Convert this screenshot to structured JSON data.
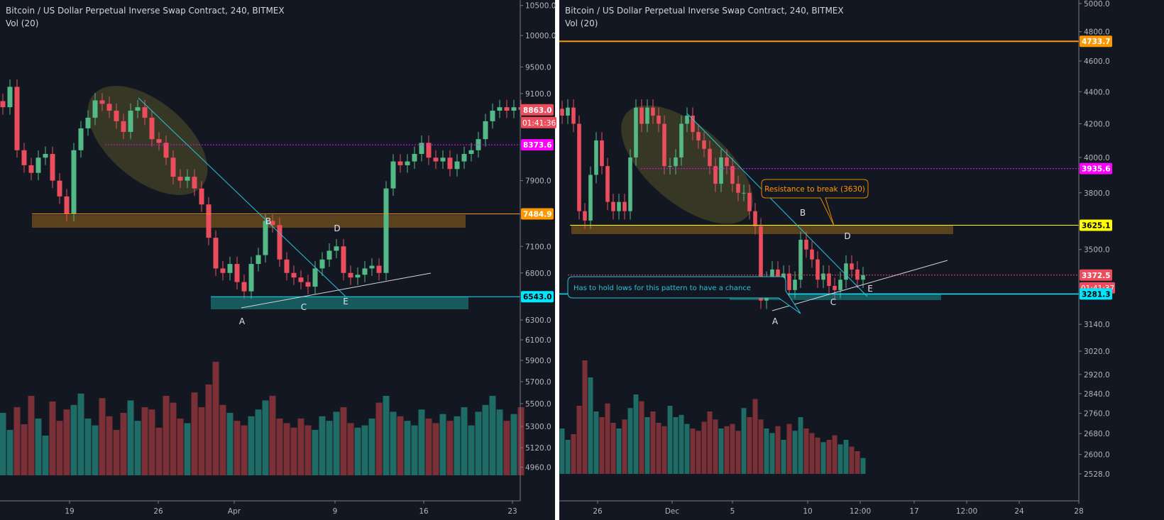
{
  "colors": {
    "background": "#131722",
    "up": "#53b987",
    "down": "#eb4d5c",
    "vol_up": "#1f6b66",
    "vol_down": "#7b2f37",
    "axis_text": "#b2b5be",
    "cyan": "#00e5ff",
    "magenta": "#ff00ff",
    "orange": "#ff9800",
    "yellow": "#ffff00"
  },
  "chart_data": [
    {
      "type": "candlestick",
      "title": "Bitcoin / US Dollar Perpetual Inverse Swap Contract, 240, BITMEX",
      "indicator": "Vol (20)",
      "scale": "log",
      "ylim": [
        4850,
        10600
      ],
      "y_ticks": [
        "10500.0",
        "10000.0",
        "9500.0",
        "9100.0",
        "7900.0",
        "7100.0",
        "6800.0",
        "6300.0",
        "6100.0",
        "5900.0",
        "5700.0",
        "5500.0",
        "5300.0",
        "5120.0",
        "4960.0"
      ],
      "x_ticks": [
        "19",
        "26",
        "Apr",
        "9",
        "16",
        "23"
      ],
      "closes": [
        8900,
        9200,
        8300,
        8100,
        8000,
        8200,
        8250,
        7900,
        7700,
        7480,
        8300,
        8600,
        8750,
        9000,
        8950,
        8850,
        8700,
        8550,
        8850,
        8900,
        8750,
        8450,
        8400,
        8200,
        7950,
        7900,
        7950,
        7800,
        7600,
        7200,
        6850,
        6800,
        6900,
        6700,
        6600,
        6900,
        7000,
        7400,
        7350,
        6950,
        6800,
        6750,
        6700,
        6650,
        6850,
        6950,
        7050,
        7100,
        6800,
        6750,
        6780,
        6850,
        6880,
        6800,
        7800,
        8150,
        8100,
        8150,
        8250,
        8400,
        8200,
        8150,
        8200,
        8050,
        8150,
        8250,
        8300,
        8450,
        8700,
        8850,
        8900,
        8850,
        8900,
        8863
      ],
      "volumes": [
        55,
        40,
        60,
        45,
        70,
        50,
        35,
        65,
        48,
        58,
        62,
        72,
        50,
        44,
        68,
        52,
        40,
        55,
        66,
        48,
        60,
        58,
        42,
        70,
        64,
        50,
        46,
        73,
        60,
        80,
        100,
        62,
        55,
        48,
        44,
        52,
        58,
        66,
        70,
        50,
        46,
        42,
        50,
        44,
        40,
        52,
        48,
        56,
        60,
        46,
        42,
        44,
        50,
        64,
        70,
        56,
        52,
        48,
        44,
        58,
        50,
        46,
        54,
        48,
        52,
        60,
        44,
        56,
        62,
        70,
        58,
        48,
        54,
        60
      ],
      "price_lines": [
        {
          "label": "8863.0",
          "role": "last",
          "sub": "01:41:36"
        },
        {
          "label": "8373.6",
          "role": "magenta"
        },
        {
          "label": "7484.9",
          "role": "orange"
        },
        {
          "label": "6543.0",
          "role": "cyan"
        }
      ],
      "pattern_labels": [
        "A",
        "B",
        "C",
        "D",
        "E"
      ]
    },
    {
      "type": "candlestick",
      "title": "Bitcoin / US Dollar Perpetual Inverse Swap Contract, 240, BITMEX",
      "indicator": "Vol (20)",
      "scale": "log",
      "ylim": [
        2500,
        5020
      ],
      "y_ticks": [
        "5000.0",
        "4800.0",
        "4600.0",
        "4400.0",
        "4200.0",
        "4000.0",
        "3800.0",
        "3500.0",
        "3140.0",
        "3020.0",
        "2920.0",
        "2840.0",
        "2760.0",
        "2680.0",
        "2600.0",
        "2528.0"
      ],
      "x_ticks": [
        "26",
        "Dec",
        "5",
        "10",
        "12:00",
        "17",
        "12:00",
        "24",
        "28"
      ],
      "closes": [
        4250,
        4300,
        4200,
        3700,
        3650,
        3900,
        4100,
        3950,
        3750,
        3700,
        3750,
        3700,
        4000,
        4300,
        4200,
        4300,
        4250,
        4200,
        3950,
        3950,
        4000,
        4200,
        4250,
        4150,
        4100,
        4050,
        3950,
        3850,
        4000,
        3950,
        3850,
        3800,
        3800,
        3700,
        3620,
        3250,
        3350,
        3400,
        3350,
        3380,
        3300,
        3350,
        3550,
        3500,
        3450,
        3350,
        3380,
        3320,
        3300,
        3350,
        3430,
        3400,
        3350,
        3372
      ],
      "volumes": [
        40,
        30,
        35,
        60,
        100,
        85,
        55,
        50,
        62,
        45,
        40,
        48,
        58,
        70,
        64,
        50,
        55,
        45,
        42,
        60,
        50,
        52,
        44,
        40,
        38,
        46,
        55,
        48,
        40,
        42,
        44,
        38,
        58,
        50,
        66,
        48,
        40,
        36,
        42,
        30,
        44,
        38,
        50,
        40,
        36,
        32,
        28,
        30,
        34,
        26,
        30,
        24,
        20,
        14
      ],
      "price_lines": [
        {
          "label": "4733.7",
          "role": "orange"
        },
        {
          "label": "3935.6",
          "role": "magenta"
        },
        {
          "label": "3625.1",
          "role": "yellow"
        },
        {
          "label": "3372.5",
          "role": "last",
          "sub": "01:41:37"
        },
        {
          "label": "3281.3",
          "role": "cyan"
        }
      ],
      "annotations": {
        "resistance": "Resistance to break (3630)",
        "hold": "Has to hold lows for this pattern to have a chance"
      },
      "pattern_labels": [
        "A",
        "B",
        "C",
        "D",
        "E"
      ]
    }
  ]
}
